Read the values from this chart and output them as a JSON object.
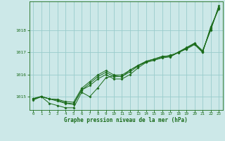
{
  "title": "Graphe pression niveau de la mer (hPa)",
  "bg_color": "#cce8e8",
  "grid_color": "#99cccc",
  "line_color": "#1a6b1a",
  "marker_color": "#1a6b1a",
  "xlim": [
    -0.5,
    23.5
  ],
  "ylim": [
    1014.4,
    1019.3
  ],
  "yticks": [
    1015,
    1016,
    1017,
    1018
  ],
  "xticks": [
    0,
    1,
    2,
    3,
    4,
    5,
    6,
    7,
    8,
    9,
    10,
    11,
    12,
    13,
    14,
    15,
    16,
    17,
    18,
    19,
    20,
    21,
    22,
    23
  ],
  "series": [
    {
      "x": [
        0,
        1,
        2,
        3,
        4,
        5,
        6,
        7,
        8,
        9,
        10,
        11,
        12,
        13,
        14,
        15,
        16,
        17,
        18,
        19,
        20,
        21,
        22,
        23
      ],
      "y": [
        1014.9,
        1015.0,
        1014.9,
        1014.8,
        1014.7,
        1014.65,
        1015.3,
        1015.5,
        1015.8,
        1016.0,
        1015.8,
        1015.8,
        1016.0,
        1016.3,
        1016.55,
        1016.65,
        1016.75,
        1016.8,
        1017.0,
        1017.15,
        1017.35,
        1017.0,
        1018.15,
        1018.95
      ]
    },
    {
      "x": [
        0,
        1,
        2,
        3,
        4,
        5,
        6,
        7,
        8,
        9,
        10,
        11,
        12,
        13,
        14,
        15,
        16,
        17,
        18,
        19,
        20,
        21,
        22,
        23
      ],
      "y": [
        1014.85,
        1015.0,
        1014.7,
        1014.6,
        1014.5,
        1014.5,
        1015.2,
        1015.0,
        1015.4,
        1015.85,
        1015.95,
        1015.9,
        1016.2,
        1016.4,
        1016.55,
        1016.65,
        1016.78,
        1016.88,
        1016.98,
        1017.18,
        1017.38,
        1017.05,
        1018.0,
        1019.1
      ]
    },
    {
      "x": [
        0,
        1,
        2,
        3,
        4,
        5,
        6,
        7,
        8,
        9,
        10,
        11,
        12,
        13,
        14,
        15,
        16,
        17,
        18,
        19,
        20,
        21,
        22,
        23
      ],
      "y": [
        1014.9,
        1015.0,
        1014.9,
        1014.85,
        1014.72,
        1014.68,
        1015.3,
        1015.6,
        1015.9,
        1016.1,
        1015.9,
        1015.92,
        1016.12,
        1016.38,
        1016.6,
        1016.7,
        1016.82,
        1016.82,
        1017.0,
        1017.2,
        1017.4,
        1017.0,
        1018.1,
        1019.0
      ]
    },
    {
      "x": [
        0,
        1,
        2,
        3,
        4,
        5,
        6,
        7,
        8,
        9,
        10,
        11,
        12,
        13,
        14,
        15,
        16,
        17,
        18,
        19,
        20,
        21,
        22,
        23
      ],
      "y": [
        1014.92,
        1015.02,
        1014.9,
        1014.88,
        1014.78,
        1014.75,
        1015.38,
        1015.68,
        1015.98,
        1016.18,
        1015.98,
        1015.98,
        1016.2,
        1016.42,
        1016.6,
        1016.7,
        1016.82,
        1016.82,
        1017.02,
        1017.22,
        1017.42,
        1017.08,
        1018.02,
        1019.02
      ]
    }
  ]
}
